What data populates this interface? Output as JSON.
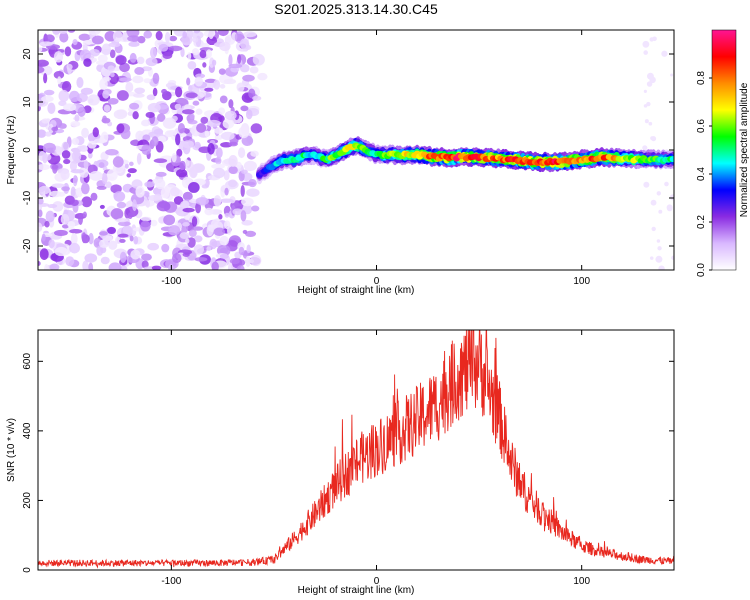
{
  "title": "S201.2025.313.14.30.C45",
  "chart_data": [
    {
      "type": "heatmap",
      "xlabel": "Height of straight line (km)",
      "ylabel": "Frequency (Hz)",
      "xlim": [
        -165,
        145
      ],
      "ylim": [
        -25,
        25
      ],
      "xticks": [
        -100,
        0,
        100
      ],
      "yticks": [
        -20,
        -10,
        0,
        10,
        20
      ],
      "colorbar": {
        "label": "Normalized spectral amplitude",
        "range": [
          0,
          1
        ],
        "ticks": [
          0.0,
          0.2,
          0.4,
          0.6,
          0.8
        ],
        "colors": [
          "#ffffff",
          "#d9b8ff",
          "#8a2be2",
          "#0000ff",
          "#00ffff",
          "#00ff00",
          "#ffff00",
          "#ff8c00",
          "#ff0000",
          "#ff1493"
        ]
      },
      "noise_region": {
        "x_from": -165,
        "x_to": -55,
        "y_from": -25,
        "y_to": 25
      },
      "ridge": {
        "x": [
          -57,
          -50,
          -45,
          -40,
          -35,
          -30,
          -25,
          -20,
          -15,
          -10,
          -5,
          0,
          5,
          10,
          15,
          20,
          30,
          40,
          50,
          60,
          70,
          80,
          90,
          100,
          110,
          120,
          130,
          145
        ],
        "y": [
          -5,
          -3,
          -2,
          -2,
          -1,
          -1,
          -2,
          -1,
          0,
          1,
          0,
          -1,
          -1,
          -1,
          -1,
          -1,
          -1.5,
          -1.5,
          -1.5,
          -1.8,
          -2.2,
          -2.5,
          -2.5,
          -2,
          -1.5,
          -1.8,
          -2,
          -2
        ],
        "amplitude": [
          0.3,
          0.4,
          0.5,
          0.55,
          0.5,
          0.45,
          0.55,
          0.6,
          0.65,
          0.7,
          0.6,
          0.5,
          0.6,
          0.65,
          0.7,
          0.75,
          0.85,
          0.9,
          0.85,
          0.8,
          0.9,
          0.88,
          0.9,
          0.8,
          0.85,
          0.7,
          0.6,
          0.5
        ]
      }
    },
    {
      "type": "line",
      "xlabel": "Height of straight line (km)",
      "ylabel": "SNR (10 * v/v)",
      "xlim": [
        -165,
        145
      ],
      "ylim": [
        0,
        690
      ],
      "xticks": [
        -100,
        0,
        100
      ],
      "yticks": [
        0,
        200,
        400,
        600
      ],
      "series": [
        {
          "name": "SNR",
          "color": "#e8281f",
          "x": [
            -165,
            -140,
            -110,
            -80,
            -60,
            -50,
            -45,
            -40,
            -30,
            -20,
            -10,
            0,
            10,
            20,
            30,
            40,
            50,
            55,
            60,
            65,
            70,
            75,
            80,
            90,
            100,
            110,
            120,
            130,
            145
          ],
          "y": [
            20,
            20,
            20,
            20,
            22,
            30,
            60,
            90,
            160,
            240,
            310,
            350,
            390,
            430,
            480,
            560,
            600,
            520,
            440,
            320,
            250,
            200,
            170,
            110,
            70,
            50,
            40,
            30,
            25
          ]
        }
      ]
    }
  ]
}
